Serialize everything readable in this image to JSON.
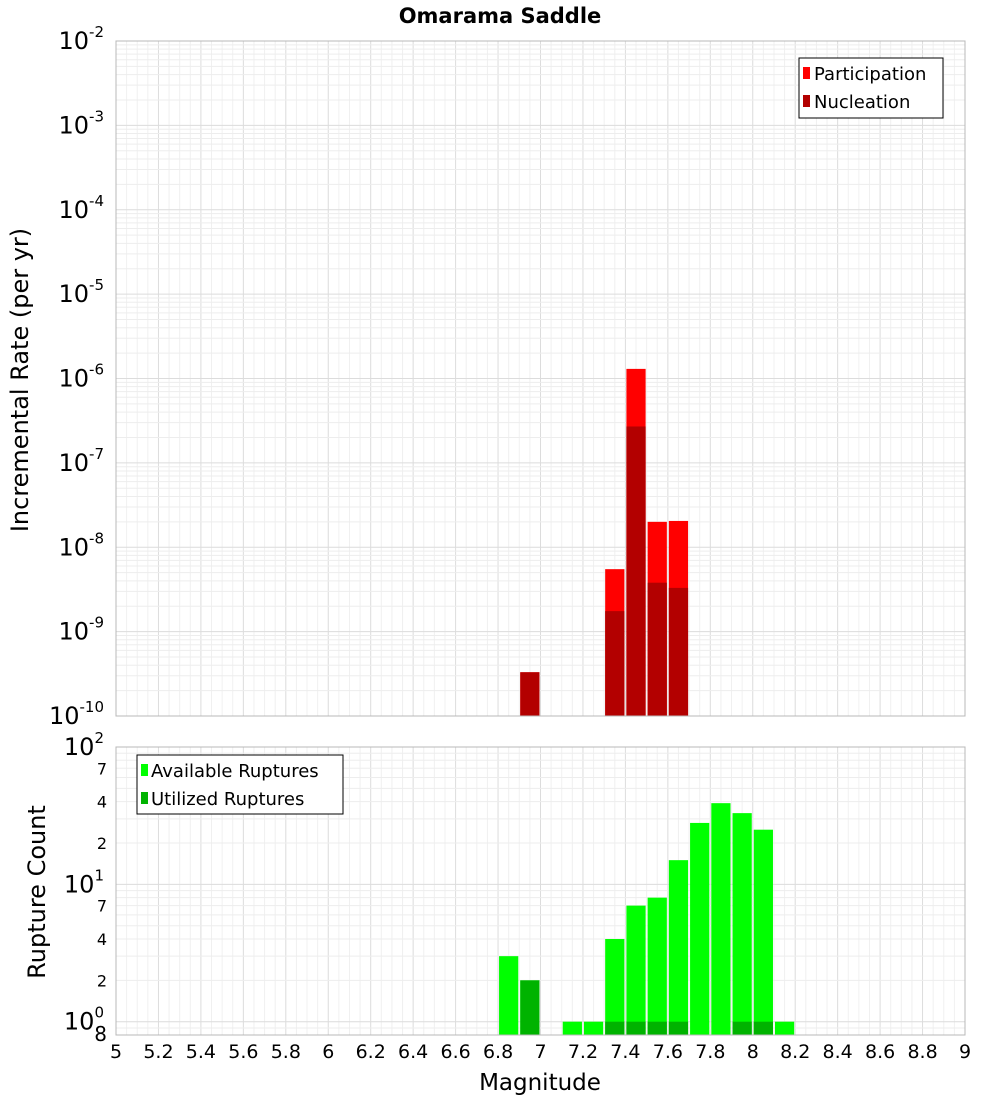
{
  "chart_data": [
    {
      "type": "bar",
      "title": "Omarama Saddle",
      "ylabel": "Incremental Rate (per yr)",
      "xlabel": "",
      "y_scale": "log",
      "ylim": [
        1e-10,
        0.01
      ],
      "xlim": [
        5,
        9
      ],
      "x_tick_labels": [
        "5",
        "5.2",
        "5.4",
        "5.6",
        "5.8",
        "6",
        "6.2",
        "6.4",
        "6.6",
        "6.8",
        "7",
        "7.2",
        "7.4",
        "7.6",
        "7.8",
        "8",
        "8.2",
        "8.4",
        "8.6",
        "8.8",
        "9"
      ],
      "y_tick_labels": [
        {
          "base": "10",
          "exp": "-10"
        },
        {
          "base": "10",
          "exp": "-9"
        },
        {
          "base": "10",
          "exp": "-8"
        },
        {
          "base": "10",
          "exp": "-7"
        },
        {
          "base": "10",
          "exp": "-6"
        },
        {
          "base": "10",
          "exp": "-5"
        },
        {
          "base": "10",
          "exp": "-4"
        },
        {
          "base": "10",
          "exp": "-3"
        },
        {
          "base": "10",
          "exp": "-2"
        }
      ],
      "grid": true,
      "legend_position": "top-right",
      "bar_width": 0.1,
      "colors": {
        "Participation": "#ff0000",
        "Nucleation": "#b30000"
      },
      "series": [
        {
          "name": "Participation",
          "x": [
            6.95,
            7.35,
            7.45,
            7.55,
            7.65
          ],
          "values": [
            3.3e-10,
            5.5e-09,
            1.3e-06,
            2e-08,
            2.05e-08
          ]
        },
        {
          "name": "Nucleation",
          "x": [
            6.95,
            7.35,
            7.45,
            7.55,
            7.65
          ],
          "values": [
            3.3e-10,
            1.75e-09,
            2.7e-07,
            3.8e-09,
            3.3e-09
          ]
        }
      ]
    },
    {
      "type": "bar",
      "title": "",
      "ylabel": "Rupture Count",
      "xlabel": "Magnitude",
      "y_scale": "log",
      "ylim": [
        0.8,
        100
      ],
      "xlim": [
        5,
        9
      ],
      "x_tick_labels": [
        "5",
        "5.2",
        "5.4",
        "5.6",
        "5.8",
        "6",
        "6.2",
        "6.4",
        "6.6",
        "6.8",
        "7",
        "7.2",
        "7.4",
        "7.6",
        "7.8",
        "8",
        "8.2",
        "8.4",
        "8.6",
        "8.8",
        "9"
      ],
      "y_major_tick_labels": [
        {
          "base": "10",
          "exp": "0"
        },
        {
          "base": "10",
          "exp": "1"
        },
        {
          "base": "10",
          "exp": "2"
        }
      ],
      "y_minor_tick_labels": [
        {
          "value": 0.8,
          "label": "8"
        },
        {
          "value": 2,
          "label": "2"
        },
        {
          "value": 4,
          "label": "4"
        },
        {
          "value": 7,
          "label": "7"
        },
        {
          "value": 20,
          "label": "2"
        },
        {
          "value": 40,
          "label": "4"
        },
        {
          "value": 70,
          "label": "7"
        }
      ],
      "grid": true,
      "legend_position": "top-left",
      "bar_width": 0.1,
      "colors": {
        "Available Ruptures": "#00ff00",
        "Utilized Ruptures": "#00b300"
      },
      "series": [
        {
          "name": "Available Ruptures",
          "x": [
            6.85,
            6.95,
            7.15,
            7.25,
            7.35,
            7.45,
            7.55,
            7.65,
            7.75,
            7.85,
            7.95,
            8.05,
            8.15
          ],
          "values": [
            3,
            2,
            1,
            1,
            4,
            7,
            8,
            15,
            28,
            39,
            33,
            25,
            1
          ]
        },
        {
          "name": "Utilized Ruptures",
          "x": [
            6.95,
            7.35,
            7.45,
            7.55,
            7.65,
            7.95,
            8.05
          ],
          "values": [
            2,
            1,
            1,
            1,
            1,
            1,
            1
          ]
        }
      ]
    }
  ]
}
